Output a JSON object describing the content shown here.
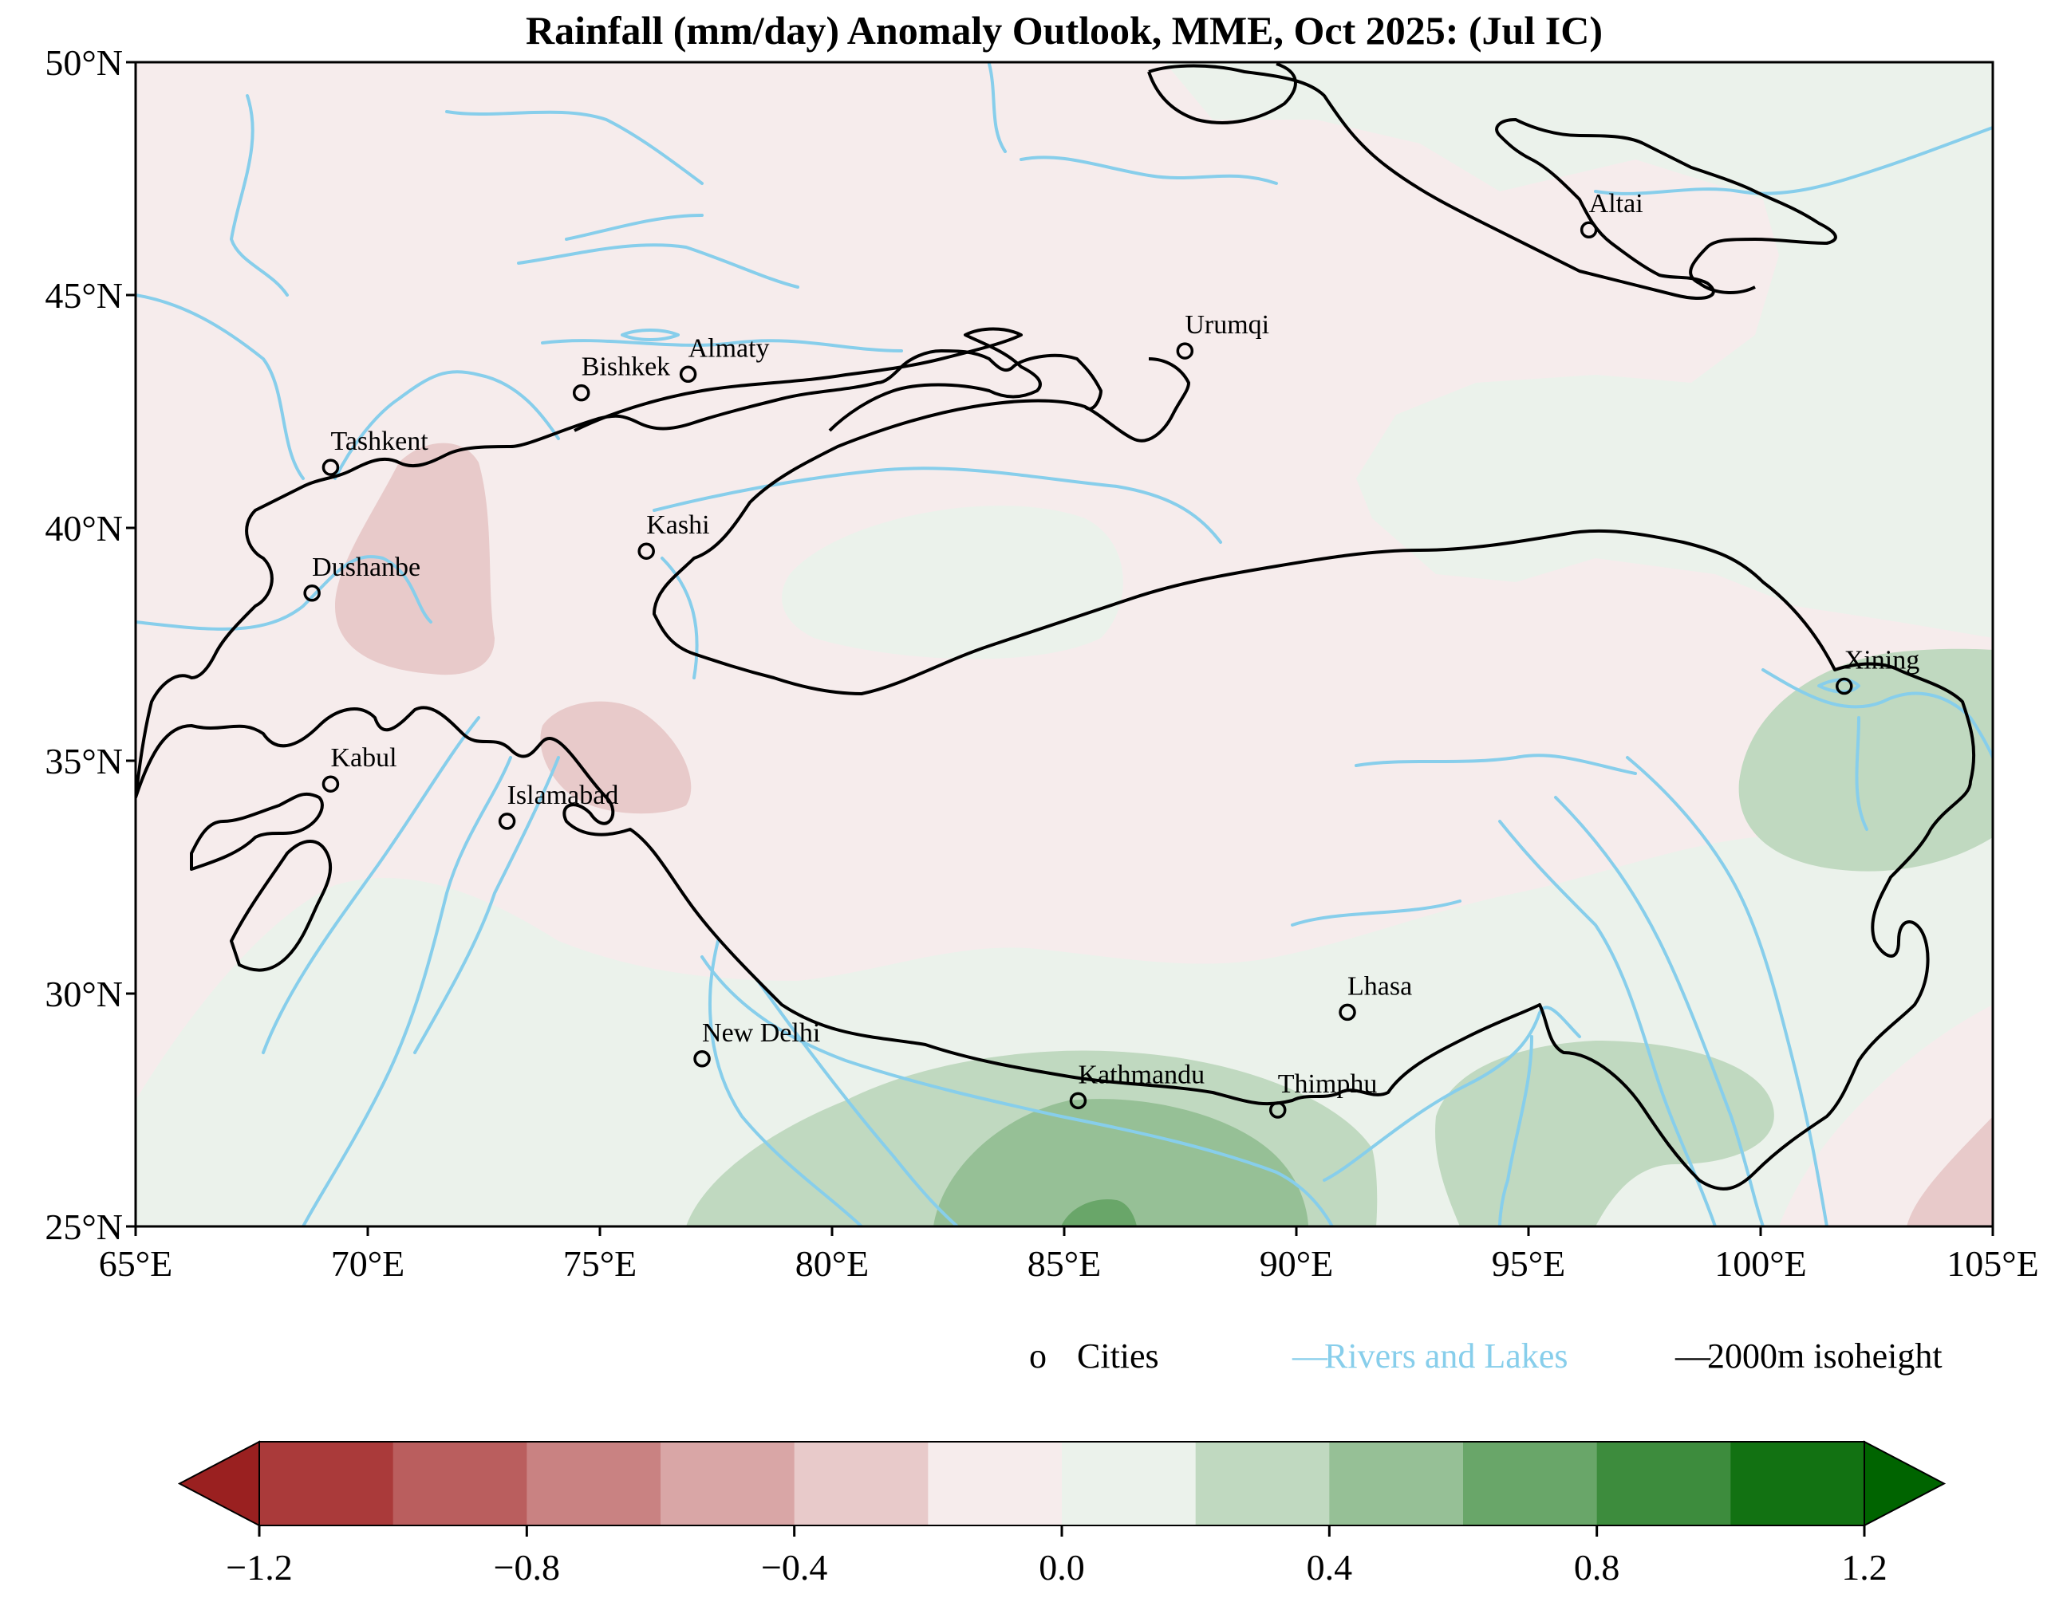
{
  "title": "Rainfall (mm/day) Anomaly Outlook, MME, Oct  2025:  (Jul IC)",
  "map": {
    "lon_range": [
      65,
      105
    ],
    "lat_range": [
      25,
      50
    ],
    "lon_ticks": [
      {
        "value": 65,
        "label": "65°E"
      },
      {
        "value": 70,
        "label": "70°E"
      },
      {
        "value": 75,
        "label": "75°E"
      },
      {
        "value": 80,
        "label": "80°E"
      },
      {
        "value": 85,
        "label": "85°E"
      },
      {
        "value": 90,
        "label": "90°E"
      },
      {
        "value": 95,
        "label": "95°E"
      },
      {
        "value": 100,
        "label": "100°E"
      },
      {
        "value": 105,
        "label": "105°E"
      }
    ],
    "lat_ticks": [
      {
        "value": 50,
        "label": "50°N"
      },
      {
        "value": 45,
        "label": "45°N"
      },
      {
        "value": 40,
        "label": "40°N"
      },
      {
        "value": 35,
        "label": "35°N"
      },
      {
        "value": 30,
        "label": "30°N"
      },
      {
        "value": 25,
        "label": "25°N"
      }
    ],
    "colors": {
      "background": "#f6ecec",
      "rivers": "#87ceeb",
      "isoheight": "#000000"
    },
    "cities": [
      {
        "name": "Altai",
        "lon": 96.3,
        "lat": 46.4
      },
      {
        "name": "Urumqi",
        "lon": 87.6,
        "lat": 43.8
      },
      {
        "name": "Bishkek",
        "lon": 74.6,
        "lat": 42.9
      },
      {
        "name": "Almaty",
        "lon": 76.9,
        "lat": 43.3
      },
      {
        "name": "Tashkent",
        "lon": 69.2,
        "lat": 41.3
      },
      {
        "name": "Kashi",
        "lon": 76.0,
        "lat": 39.5
      },
      {
        "name": "Dushanbe",
        "lon": 68.8,
        "lat": 38.6
      },
      {
        "name": "Xining",
        "lon": 101.8,
        "lat": 36.6
      },
      {
        "name": "Kabul",
        "lon": 69.2,
        "lat": 34.5
      },
      {
        "name": "Islamabad",
        "lon": 73.0,
        "lat": 33.7
      },
      {
        "name": "Lhasa",
        "lon": 91.1,
        "lat": 29.6
      },
      {
        "name": "New Delhi",
        "lon": 77.2,
        "lat": 28.6
      },
      {
        "name": "Kathmandu",
        "lon": 85.3,
        "lat": 27.7
      },
      {
        "name": "Thimphu",
        "lon": 89.6,
        "lat": 27.5
      }
    ]
  },
  "legend": {
    "marker": "o",
    "cities_label": "Cities",
    "rivers_label": "Rivers and Lakes",
    "isoheight_label": "2000m isoheight",
    "line_glyph": "—"
  },
  "colorbar": {
    "levels": [
      -1.2,
      -1.0,
      -0.8,
      -0.6,
      -0.4,
      -0.2,
      0.0,
      0.2,
      0.4,
      0.6,
      0.8,
      1.0,
      1.2
    ],
    "colors": [
      "#aa3a3a",
      "#ba5e5e",
      "#c98282",
      "#d9a6a6",
      "#e8caca",
      "#f6ecec",
      "#ebf2eb",
      "#c0d9c0",
      "#96c096",
      "#69a669",
      "#3d8c3d",
      "#127212"
    ],
    "extend_low_color": "#9a2020",
    "extend_high_color": "#006400",
    "tick_labels": [
      {
        "value": -1.2,
        "label": "−1.2"
      },
      {
        "value": -0.8,
        "label": "−0.8"
      },
      {
        "value": -0.4,
        "label": "−0.4"
      },
      {
        "value": 0.0,
        "label": "0.0"
      },
      {
        "value": 0.4,
        "label": "0.4"
      },
      {
        "value": 0.8,
        "label": "0.8"
      },
      {
        "value": 1.2,
        "label": "1.2"
      }
    ]
  }
}
